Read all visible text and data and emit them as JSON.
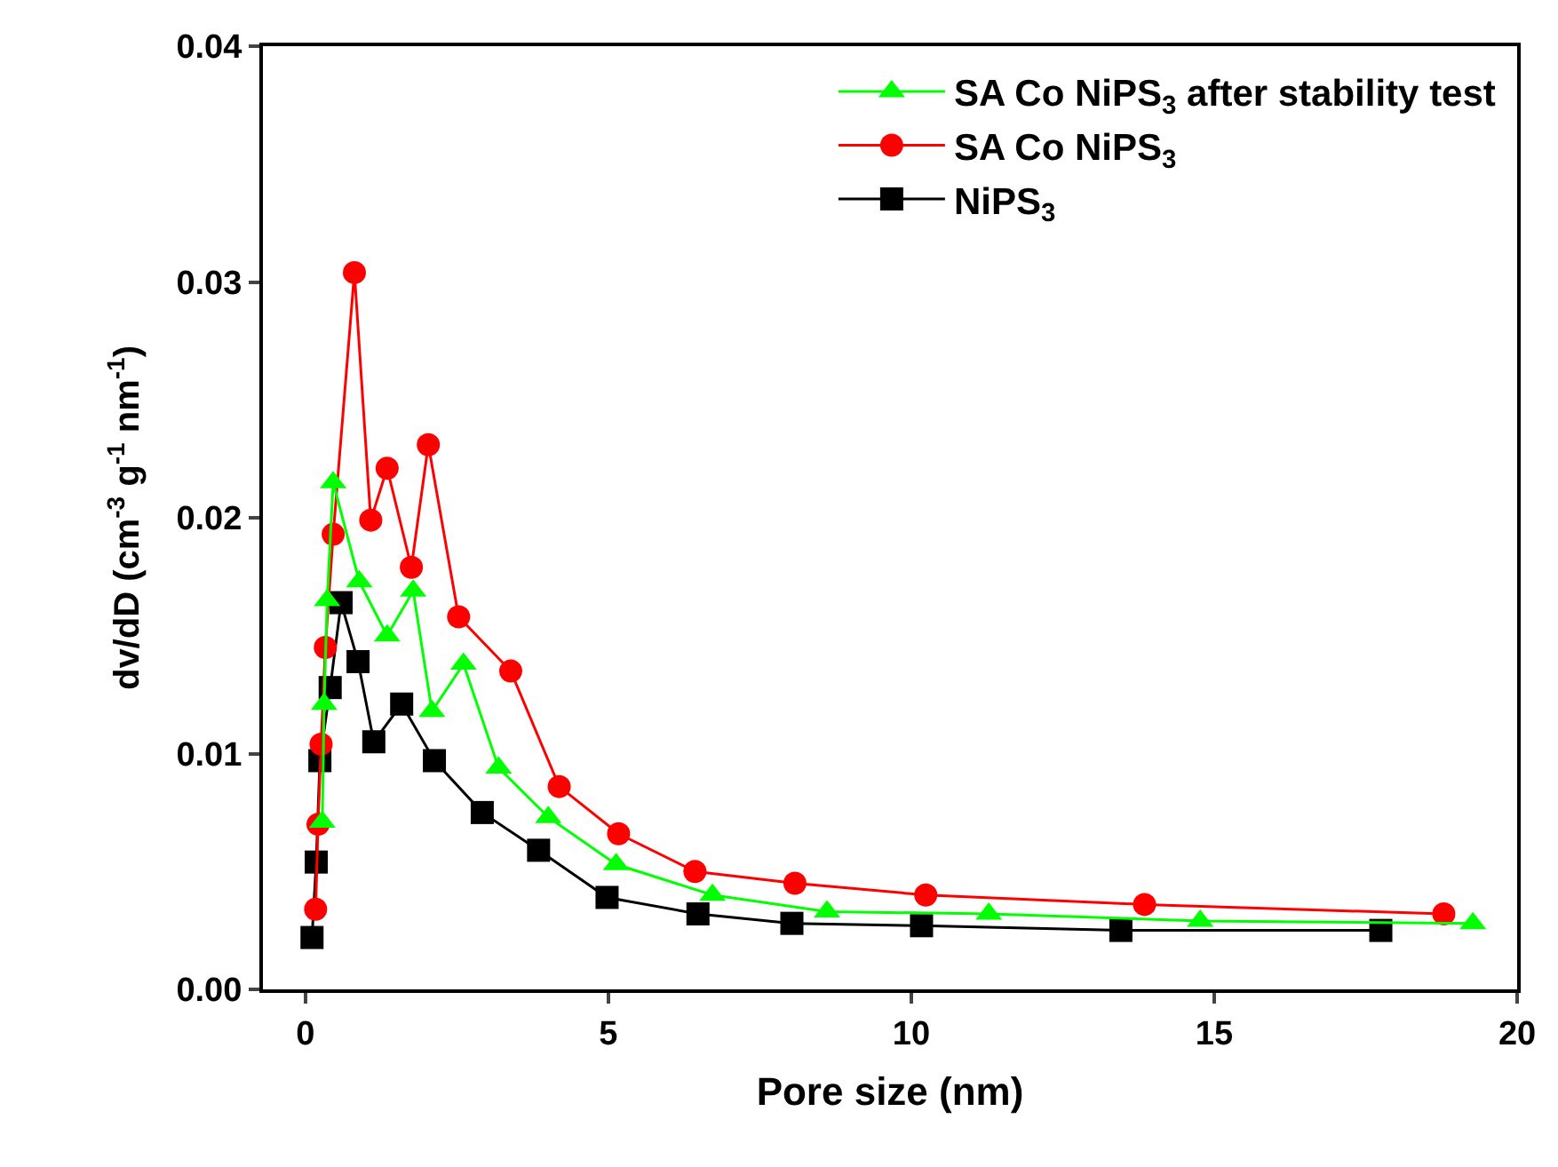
{
  "chart_data": {
    "type": "line",
    "xlabel": "Pore size (nm)",
    "ylabel": "dv/dD (cm$^{-3}$ g$^{-1}$ nm$^{-1}$)",
    "xlim": [
      -0.7,
      20
    ],
    "xticks": [
      0,
      5,
      10,
      15,
      20
    ],
    "ylim": [
      0,
      0.04
    ],
    "yticks": [
      {
        "value": 0,
        "label": "0.00"
      },
      {
        "value": 0.01,
        "label": "0.01"
      },
      {
        "value": 0.02,
        "label": "0.02"
      },
      {
        "value": 0.03,
        "label": "0.03"
      },
      {
        "value": 0.04,
        "label": "0.04"
      }
    ],
    "legend": "top right",
    "line_style": "solid",
    "series": [
      {
        "name": "SA Co NiPS$_{3}$ after stability test",
        "color": "#00ff00",
        "marker": "triangle",
        "x": [
          0.28,
          0.31,
          0.36,
          0.46,
          0.89,
          1.35,
          1.78,
          2.09,
          2.61,
          3.19,
          4.01,
          5.13,
          6.72,
          8.61,
          11.28,
          14.77,
          19.27
        ],
        "values": [
          0.0071,
          0.0121,
          0.0165,
          0.0215,
          0.0173,
          0.015,
          0.0169,
          0.0118,
          0.0138,
          0.0094,
          0.0073,
          0.0053,
          0.004,
          0.0033,
          0.0032,
          0.0029,
          0.0028
        ]
      },
      {
        "name": "SA Co NiPS$_{3}$",
        "color": "#ff0000",
        "marker": "circle",
        "x": [
          0.17,
          0.21,
          0.26,
          0.33,
          0.46,
          0.81,
          1.08,
          1.35,
          1.75,
          2.03,
          2.53,
          3.39,
          4.19,
          5.17,
          6.43,
          8.08,
          10.24,
          13.85,
          18.79
        ],
        "values": [
          0.0034,
          0.007,
          0.0104,
          0.0145,
          0.0193,
          0.0304,
          0.0199,
          0.0221,
          0.0179,
          0.0231,
          0.0158,
          0.0135,
          0.0086,
          0.0066,
          0.005,
          0.0045,
          0.004,
          0.0036,
          0.0032
        ]
      },
      {
        "name": "NiPS$_{3}$",
        "color": "#000000",
        "marker": "square",
        "x": [
          0.11,
          0.18,
          0.24,
          0.41,
          0.59,
          0.87,
          1.13,
          1.59,
          2.13,
          2.92,
          3.85,
          4.98,
          6.48,
          8.03,
          10.17,
          13.46,
          17.75
        ],
        "values": [
          0.0022,
          0.0054,
          0.0097,
          0.0128,
          0.0164,
          0.0139,
          0.0105,
          0.0121,
          0.0097,
          0.0075,
          0.0059,
          0.0039,
          0.0032,
          0.0028,
          0.0027,
          0.0025,
          0.0025
        ]
      }
    ]
  }
}
